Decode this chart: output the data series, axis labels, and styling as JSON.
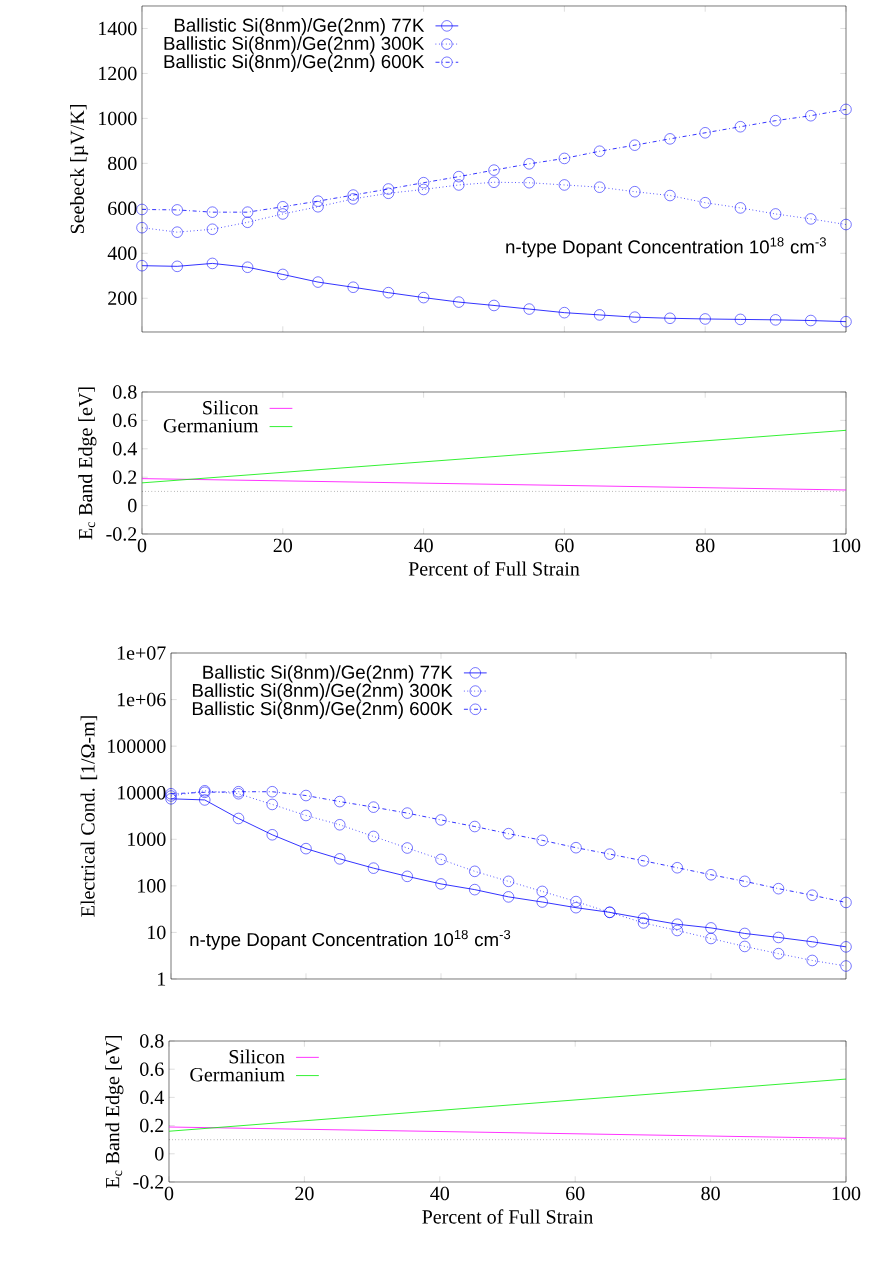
{
  "chart_data": [
    {
      "type": "line",
      "ylabel": "Seebeck [µV/K]",
      "x": [
        0,
        5,
        10,
        15,
        20,
        25,
        30,
        35,
        40,
        45,
        50,
        55,
        60,
        65,
        70,
        75,
        80,
        85,
        90,
        95,
        100
      ],
      "xlim": [
        0,
        100
      ],
      "xticks": [
        0,
        20,
        40,
        60,
        80,
        100
      ],
      "ylim": [
        50,
        1500
      ],
      "yticks": [
        200,
        400,
        600,
        800,
        1000,
        1200,
        1400
      ],
      "tick_labels": "y",
      "marker": "circle",
      "legend": "top",
      "annotations": [
        "n-type Dopant Concentration 10$^{18}$ cm$^{-3}$"
      ],
      "series": [
        {
          "name": "Ballistic Si(8nm)/Ge(2nm) 77K",
          "color": "#0000ff",
          "line_style": "solid",
          "values": [
            345,
            342,
            355,
            338,
            306,
            272,
            249,
            225,
            203,
            183,
            168,
            152,
            136,
            126,
            116,
            111,
            108,
            106,
            104,
            101,
            96
          ]
        },
        {
          "name": "Ballistic Si(8nm)/Ge(2nm) 300K",
          "color": "#0000ff",
          "line_style": "dotted",
          "values": [
            514,
            494,
            507,
            538,
            575,
            607,
            642,
            667,
            684,
            704,
            716,
            714,
            704,
            694,
            674,
            657,
            625,
            602,
            575,
            553,
            528
          ]
        },
        {
          "name": "Ballistic Si(8nm)/Ge(2nm) 600K",
          "color": "#0000ff",
          "line_style": "dashdot",
          "values": [
            595,
            593,
            583,
            583,
            607,
            632,
            659,
            686,
            714,
            741,
            770,
            798,
            822,
            854,
            881,
            909,
            936,
            963,
            990,
            1012,
            1040
          ]
        }
      ]
    },
    {
      "type": "line",
      "xlabel": "Percent of Full Strain",
      "ylabel": "E$_{c}$  Band Edge [eV]",
      "x": [
        0,
        100
      ],
      "xlim": [
        0,
        100
      ],
      "xticks": [
        0,
        20,
        40,
        60,
        80,
        100
      ],
      "ylim": [
        -0.2,
        0.8
      ],
      "yticks": [
        -0.2,
        0,
        0.2,
        0.4,
        0.6,
        0.8
      ],
      "legend": "top",
      "marker": "none",
      "ref_lines": [
        {
          "axis": "y",
          "value": 0.1,
          "color": "#000000",
          "line_style": "dotted"
        }
      ],
      "series": [
        {
          "name": "Silicon",
          "color": "#ff00ff",
          "line_style": "solid",
          "values": [
            0.19,
            0.11
          ]
        },
        {
          "name": "Germanium",
          "color": "#00ee00",
          "line_style": "solid",
          "values": [
            0.16,
            0.53
          ]
        }
      ]
    },
    {
      "type": "line",
      "ylabel": "Electrical Cond. [1/Ω-m]",
      "x": [
        0,
        5,
        10,
        15,
        20,
        25,
        30,
        35,
        40,
        45,
        50,
        55,
        60,
        65,
        70,
        75,
        80,
        85,
        90,
        95,
        100
      ],
      "xlim": [
        0,
        100
      ],
      "xticks": [
        0,
        20,
        40,
        60,
        80,
        100
      ],
      "ylim": [
        1,
        10000000
      ],
      "yticks": [
        1,
        10,
        100,
        1000,
        10000,
        100000,
        {
          "value": 1000000,
          "label": "1e+06"
        },
        {
          "value": 10000000,
          "label": "1e+07"
        }
      ],
      "log": "y",
      "tick_labels": "y",
      "marker": "circle",
      "legend": "top",
      "annotations": [
        "n-type Dopant Concentration 10$^{18}$ cm$^{-3}$"
      ],
      "series": [
        {
          "name": "Ballistic Si(8nm)/Ge(2nm) 77K",
          "color": "#0000ff",
          "line_style": "solid",
          "values": [
            7400,
            7000,
            2800,
            1250,
            630,
            380,
            240,
            160,
            110,
            83,
            58,
            45,
            34,
            27,
            20,
            15,
            12.5,
            9.5,
            7.8,
            6.3,
            4.9
          ]
        },
        {
          "name": "Ballistic Si(8nm)/Ge(2nm) 300K",
          "color": "#0000ff",
          "line_style": "dotted",
          "values": [
            8500,
            11000,
            9500,
            5600,
            3250,
            2050,
            1150,
            650,
            370,
            205,
            125,
            76,
            46,
            27,
            16,
            11,
            7.4,
            5,
            3.5,
            2.5,
            1.9
          ]
        },
        {
          "name": "Ballistic Si(8nm)/Ge(2nm) 600K",
          "color": "#0000ff",
          "line_style": "dashdot",
          "values": [
            9500,
            10200,
            10500,
            10500,
            8700,
            6450,
            4900,
            3650,
            2600,
            1880,
            1320,
            950,
            660,
            480,
            345,
            245,
            173,
            125,
            87,
            63,
            44
          ]
        }
      ]
    },
    {
      "type": "line",
      "xlabel": "Percent of Full Strain",
      "ylabel": "E$_{c}$  Band Edge [eV]",
      "x": [
        0,
        100
      ],
      "xlim": [
        0,
        100
      ],
      "xticks": [
        0,
        20,
        40,
        60,
        80,
        100
      ],
      "ylim": [
        -0.2,
        0.8
      ],
      "yticks": [
        -0.2,
        0,
        0.2,
        0.4,
        0.6,
        0.8
      ],
      "legend": "top",
      "marker": "none",
      "ref_lines": [
        {
          "axis": "y",
          "value": 0.1,
          "color": "#000000",
          "line_style": "dotted"
        }
      ],
      "series": [
        {
          "name": "Silicon",
          "color": "#ff00ff",
          "line_style": "solid",
          "values": [
            0.19,
            0.11
          ]
        },
        {
          "name": "Germanium",
          "color": "#00ee00",
          "line_style": "solid",
          "values": [
            0.16,
            0.53
          ]
        }
      ]
    }
  ]
}
